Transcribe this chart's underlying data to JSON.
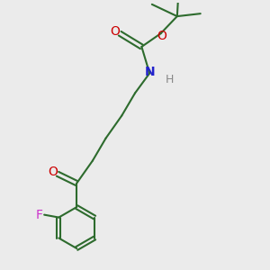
{
  "bg_color": "#ebebeb",
  "bond_color": "#2d6b2d",
  "O_color": "#cc0000",
  "N_color": "#2222cc",
  "H_color": "#888888",
  "F_color": "#cc33cc",
  "line_width": 1.5,
  "font_size": 10,
  "fig_size": [
    3.0,
    3.0
  ],
  "dpi": 100,
  "xlim": [
    0,
    10
  ],
  "ylim": [
    0,
    10
  ]
}
